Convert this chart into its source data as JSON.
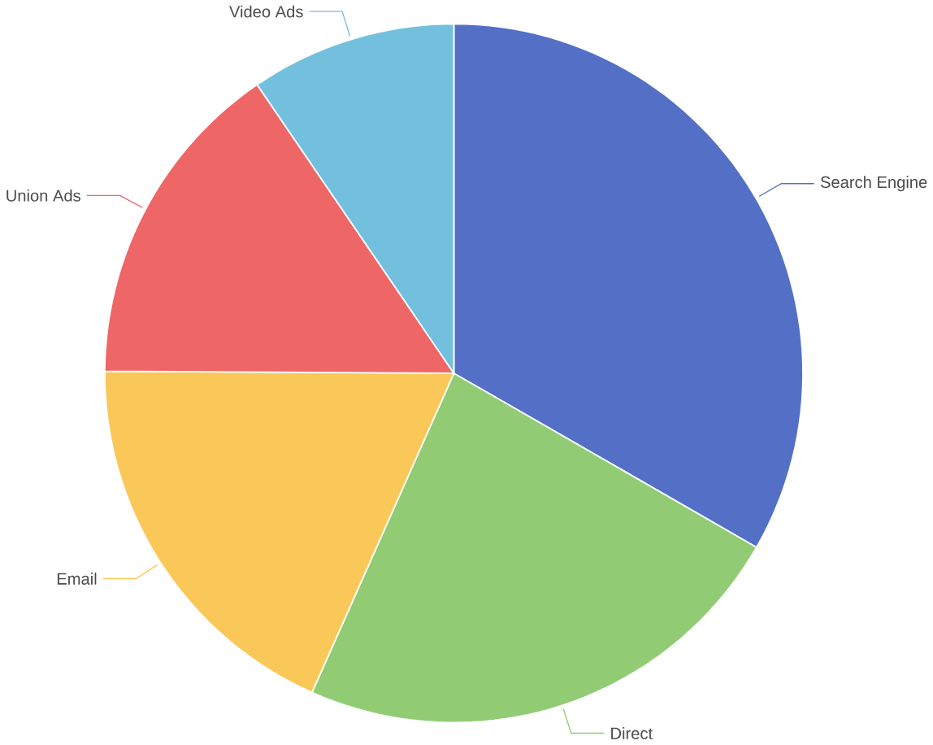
{
  "chart_data": {
    "type": "pie",
    "categories": [
      "Search Engine",
      "Direct",
      "Email",
      "Union Ads",
      "Video Ads"
    ],
    "values": [
      33.3,
      23.36,
      18.43,
      15.38,
      9.53
    ],
    "colors": [
      "#5470c6",
      "#91cc75",
      "#fac858",
      "#ee6666",
      "#73c0de"
    ]
  }
}
